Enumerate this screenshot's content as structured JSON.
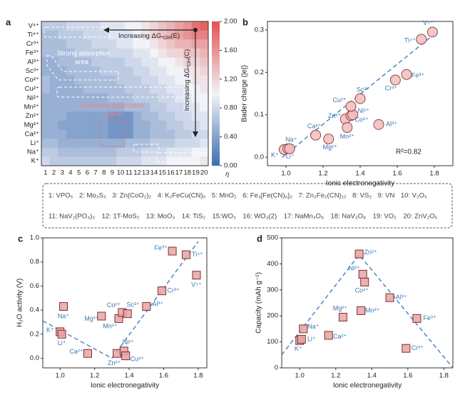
{
  "chart_data": [
    {
      "type": "heatmap",
      "panel": "a",
      "x": [
        1,
        2,
        3,
        4,
        5,
        6,
        7,
        8,
        9,
        10,
        11,
        12,
        13,
        14,
        15,
        16,
        17,
        18,
        19,
        20
      ],
      "categories": [
        "V⁴⁺",
        "Ti⁴⁺",
        "Cr³⁺",
        "Fe³⁺",
        "Al³⁺",
        "Sc³⁺",
        "Co²⁺",
        "Cu²⁺",
        "Ni²⁺",
        "Mn²⁺",
        "Zn²⁺",
        "Mg²⁺",
        "Ca²⁺",
        "Li⁺",
        "Na⁺",
        "K⁺"
      ],
      "values": [
        [
          0.7,
          0.7,
          0.7,
          0.8,
          0.8,
          0.8,
          0.8,
          0.9,
          0.9,
          0.9,
          1.0,
          1.0,
          1.1,
          1.2,
          1.3,
          1.4,
          1.5,
          1.6,
          1.8,
          1.9
        ],
        [
          0.6,
          0.6,
          0.7,
          0.7,
          0.7,
          0.8,
          0.8,
          0.8,
          0.9,
          0.9,
          0.9,
          1.0,
          1.1,
          1.2,
          1.3,
          1.4,
          1.5,
          1.6,
          1.7,
          1.7
        ],
        [
          0.6,
          0.6,
          0.6,
          0.7,
          0.7,
          0.7,
          0.8,
          0.8,
          0.8,
          0.9,
          0.9,
          1.0,
          1.0,
          1.1,
          1.2,
          1.3,
          1.4,
          1.4,
          1.5,
          1.5
        ],
        [
          0.6,
          0.6,
          0.6,
          0.6,
          0.7,
          0.7,
          0.7,
          0.7,
          0.8,
          0.8,
          0.8,
          0.9,
          0.9,
          1.0,
          1.1,
          1.2,
          1.2,
          1.3,
          1.3,
          1.4
        ],
        [
          0.5,
          0.5,
          0.6,
          0.6,
          0.6,
          0.6,
          0.7,
          0.7,
          0.7,
          0.7,
          0.8,
          0.8,
          0.9,
          0.9,
          1.0,
          1.0,
          1.1,
          1.2,
          1.2,
          1.3
        ],
        [
          0.5,
          0.5,
          0.5,
          0.6,
          0.6,
          0.6,
          0.6,
          0.7,
          0.7,
          0.7,
          0.7,
          0.8,
          0.8,
          0.9,
          0.9,
          1.0,
          1.0,
          1.1,
          1.1,
          1.2
        ],
        [
          0.6,
          0.5,
          0.5,
          0.5,
          0.6,
          0.6,
          0.6,
          0.6,
          0.6,
          0.7,
          0.7,
          0.7,
          0.8,
          0.8,
          0.9,
          0.9,
          1.0,
          1.0,
          1.1,
          1.1
        ],
        [
          0.6,
          0.5,
          0.5,
          0.5,
          0.5,
          0.6,
          0.6,
          0.6,
          0.6,
          0.6,
          0.7,
          0.7,
          0.7,
          0.8,
          0.8,
          0.9,
          0.9,
          1.0,
          1.0,
          1.1
        ],
        [
          0.5,
          0.5,
          0.5,
          0.5,
          0.5,
          0.5,
          0.5,
          0.5,
          0.6,
          0.6,
          0.6,
          0.7,
          0.7,
          0.7,
          0.8,
          0.8,
          0.9,
          0.9,
          1.0,
          1.0
        ],
        [
          0.5,
          0.5,
          0.5,
          0.5,
          0.5,
          0.5,
          0.5,
          0.5,
          0.5,
          0.5,
          0.6,
          0.6,
          0.6,
          0.7,
          0.7,
          0.8,
          0.8,
          0.9,
          0.9,
          1.0
        ],
        [
          0.5,
          0.5,
          0.5,
          0.4,
          0.4,
          0.4,
          0.4,
          0.4,
          0.3,
          0.3,
          0.3,
          0.5,
          0.6,
          0.6,
          0.7,
          0.7,
          0.8,
          0.8,
          0.9,
          0.9
        ],
        [
          0.5,
          0.5,
          0.4,
          0.4,
          0.4,
          0.4,
          0.4,
          0.4,
          0.3,
          0.3,
          0.3,
          0.5,
          0.5,
          0.6,
          0.6,
          0.7,
          0.7,
          0.8,
          0.8,
          0.9
        ],
        [
          0.5,
          0.5,
          0.5,
          0.4,
          0.4,
          0.4,
          0.4,
          0.4,
          0.3,
          0.3,
          0.3,
          0.5,
          0.5,
          0.6,
          0.6,
          0.6,
          0.7,
          0.7,
          0.8,
          0.8
        ],
        [
          0.6,
          0.6,
          0.5,
          0.5,
          0.5,
          0.5,
          0.5,
          0.5,
          0.5,
          0.5,
          0.6,
          0.6,
          0.6,
          0.7,
          0.7,
          0.7,
          0.8,
          0.8,
          0.8,
          0.9
        ],
        [
          0.7,
          0.7,
          0.6,
          0.6,
          0.6,
          0.6,
          0.6,
          0.6,
          0.6,
          0.7,
          0.7,
          0.7,
          0.8,
          0.8,
          0.8,
          0.9,
          0.9,
          0.9,
          1.0,
          1.0
        ],
        [
          0.8,
          0.7,
          0.7,
          0.7,
          0.7,
          0.7,
          0.7,
          0.7,
          0.7,
          0.8,
          0.8,
          0.8,
          0.9,
          0.9,
          0.9,
          1.0,
          1.0,
          1.0,
          1.0,
          1.1
        ]
      ],
      "colorscale": [
        "#3d6db0",
        "#f2f3f8",
        "#e25252"
      ],
      "zlim": [
        0,
        2
      ],
      "zticks": [
        {
          "value": 0,
          "label": "0.00"
        },
        {
          "value": 0.4,
          "label": "0.40"
        },
        {
          "value": 0.8,
          "label": "0.80"
        },
        {
          "value": 1.2,
          "label": "1.20"
        },
        {
          "value": 1.6,
          "label": "1.60"
        },
        {
          "value": 2,
          "label": "2.00"
        }
      ],
      "colorbar_label": "η",
      "annotation_e": [
        "Increasing ΔG",
        "*OH",
        "(E)"
      ],
      "annotation_c": [
        "Increasing ΔG",
        "*OH",
        "(C)"
      ],
      "strong_region": [
        "Strong adsorption",
        "area"
      ],
      "moderate_region": [
        "Moderate adsorption",
        "region"
      ]
    },
    {
      "type": "scatter",
      "panel": "b",
      "marker": "circle",
      "color": "#f3bcbc",
      "edge": "#8a4a4a",
      "label_color": "#3a78b5",
      "x_label": "Ionic electronegativity",
      "y_label": "Bader charge (|e|)",
      "labels": [
        "K⁺",
        "Li⁺",
        "Na⁺",
        "Ca²⁺",
        "Mg²⁺",
        "Zn²⁺",
        "Mn²⁺",
        "Co²⁺",
        "Ni²⁺",
        "Cu²⁺",
        "Sc³⁺",
        "Al³⁺",
        "Cr³⁺",
        "Fe³⁺",
        "Ti⁴⁺",
        "V⁴⁺"
      ],
      "x": [
        0.99,
        1.01,
        1.02,
        1.16,
        1.23,
        1.32,
        1.33,
        1.35,
        1.36,
        1.35,
        1.4,
        1.5,
        1.59,
        1.65,
        1.73,
        1.79
      ],
      "values": [
        0.018,
        0.02,
        0.02,
        0.052,
        0.043,
        0.09,
        0.07,
        0.098,
        0.1,
        0.12,
        0.138,
        0.077,
        0.182,
        0.195,
        0.278,
        0.295
      ],
      "fit_x": [
        0.98,
        1.8
      ],
      "fit_y": [
        0.0,
        0.29
      ],
      "annotation": "R²=0.82",
      "xlim": [
        0.9,
        1.9
      ],
      "ylim": [
        -0.02,
        0.32
      ],
      "xticks": [
        {
          "value": 1,
          "label": "1.0"
        },
        1.2,
        1.4,
        1.6,
        1.8
      ],
      "yticks": [
        {
          "value": 0,
          "label": "0.0"
        },
        0.1,
        0.2,
        0.3
      ]
    },
    {
      "type": "scatter",
      "panel": "c",
      "marker": "square",
      "color": "#e9a3a3",
      "edge": "#7a3030",
      "label_color": "#3a78b5",
      "x_label": "Ionic electronegativity",
      "y_label": "H₂O activity (V)",
      "labels": [
        "K⁺",
        "Li⁺",
        "Na⁺",
        "Ca²⁺",
        "Mg²⁺",
        "Zn²⁺",
        "Mn²⁺",
        "Co²⁺",
        "Ni²⁺",
        "Cu²⁺",
        "Sc³⁺",
        "Al³⁺",
        "Cr³⁺",
        "Fe³⁺",
        "Ti⁴⁺",
        "V⁴⁺"
      ],
      "x": [
        1.0,
        1.01,
        1.02,
        1.16,
        1.24,
        1.33,
        1.34,
        1.36,
        1.37,
        1.38,
        1.39,
        1.5,
        1.59,
        1.65,
        1.73,
        1.79
      ],
      "values": [
        0.22,
        0.2,
        0.43,
        0.04,
        0.35,
        0.04,
        0.33,
        0.38,
        0.06,
        0.02,
        0.37,
        0.43,
        0.56,
        0.89,
        0.86,
        0.69
      ],
      "fit_x": [
        0.9,
        1.3,
        1.8
      ],
      "fit_y": [
        0.31,
        0.0,
        0.97
      ],
      "xlim": [
        0.9,
        1.85
      ],
      "ylim": [
        -0.08,
        1.0
      ],
      "xticks": [
        {
          "value": 1,
          "label": "1.0"
        },
        1.2,
        1.4,
        1.6,
        1.8
      ],
      "yticks": [
        {
          "value": 0,
          "label": "0.0"
        },
        0.2,
        0.4,
        0.6,
        0.8,
        {
          "value": 1,
          "label": "1.0"
        }
      ]
    },
    {
      "type": "scatter",
      "panel": "d",
      "marker": "square",
      "color": "#e9a3a3",
      "edge": "#7a3030",
      "label_color": "#3a78b5",
      "x_label": "Ionic electronegativity",
      "y_label": "Capacity (mAh g⁻¹)",
      "labels": [
        "K⁺",
        "Li⁺",
        "Na⁺",
        "Ca²⁺",
        "Mg²⁺",
        "Zn²⁺",
        "Mn²⁺",
        "Co²⁺",
        "Ni²⁺",
        "Al³⁺",
        "Cr³⁺",
        "Fe³⁺"
      ],
      "x": [
        1.0,
        1.01,
        1.02,
        1.16,
        1.24,
        1.33,
        1.34,
        1.36,
        1.35,
        1.5,
        1.59,
        1.65
      ],
      "values": [
        105,
        110,
        150,
        125,
        195,
        438,
        220,
        330,
        360,
        270,
        75,
        190
      ],
      "fit_x": [
        0.9,
        1.33,
        1.85
      ],
      "fit_y": [
        50,
        435,
        0
      ],
      "xlim": [
        0.9,
        1.85
      ],
      "ylim": [
        0,
        500
      ],
      "xticks": [
        {
          "value": 1,
          "label": "1.0"
        },
        1.2,
        1.4,
        1.6,
        1.8
      ],
      "yticks": [
        0,
        100,
        200,
        300,
        400,
        500
      ]
    }
  ],
  "legend_items": [
    "1: VPO₅",
    "2: Mo₃S₄",
    "3: Zn(CoO₂)₂",
    "4: K₂FeCu(CN)₆",
    "5: MnO₂",
    "6: Fe₄[Fe(CN)₆]₃",
    "7: Zn₃Fe₂(CN)₁₂",
    "8: VS₂",
    "9: VN",
    "10: V₂O₅",
    "11: NaV₂(PO₄)₃",
    "12: 1T-MoS₂",
    "13: MoO₃",
    "14: TiS₂",
    "15:WO₃",
    "16: WO₃(2)",
    "17: NaMn₄O₈",
    "18: NaV₃O₈",
    "19: VO₂",
    "20: ZnV₂O₅"
  ]
}
